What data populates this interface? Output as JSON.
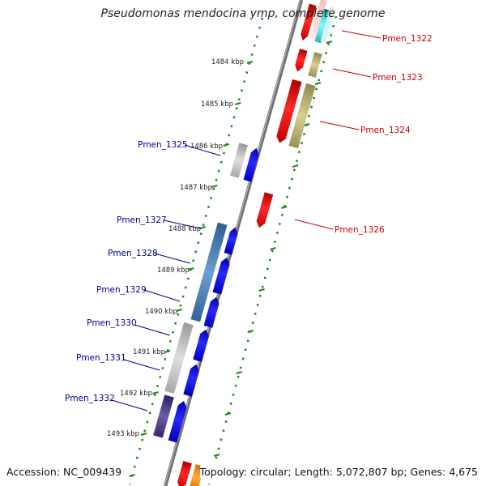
{
  "title": "Pseudomonas mendocina ymp, complete genome",
  "footer": {
    "accession": "Accession: NC_009439",
    "stats": "Topology: circular; Length: 5,072,807 bp; Genes: 4,675"
  },
  "ticks": [
    "1484 kbp",
    "1485 kbp",
    "1486 kbp",
    "1487 kbp",
    "1488 kbp",
    "1489 kbp",
    "1490 kbp",
    "1491 kbp",
    "1492 kbp",
    "1493 kbp"
  ],
  "genes_right": [
    {
      "label": "Pmen_1322",
      "color": "#cc0000"
    },
    {
      "label": "Pmen_1323",
      "color": "#cc0000"
    },
    {
      "label": "Pmen_1324",
      "color": "#cc0000"
    },
    {
      "label": "Pmen_1326",
      "color": "#cc0000"
    }
  ],
  "genes_left": [
    {
      "label": "Pmen_1325",
      "color": "#000099"
    },
    {
      "label": "Pmen_1327",
      "color": "#000099"
    },
    {
      "label": "Pmen_1328",
      "color": "#000099"
    },
    {
      "label": "Pmen_1329",
      "color": "#000099"
    },
    {
      "label": "Pmen_1330",
      "color": "#000099"
    },
    {
      "label": "Pmen_1331",
      "color": "#000099"
    },
    {
      "label": "Pmen_1332",
      "color": "#000099"
    }
  ],
  "colors": {
    "backbone": "#7a7a7a",
    "forward_strand": "#ff0000",
    "reverse_strand": "#0000ff",
    "cog_gray": "#bdbdbd",
    "cog_steelblue": "#4a7fb0",
    "cog_khaki": "#b8b070",
    "cog_cyan": "#33dddd",
    "cog_indigo": "#4a3d80",
    "cog_orange": "#ff8c00",
    "dots": "#1a8a1a"
  }
}
